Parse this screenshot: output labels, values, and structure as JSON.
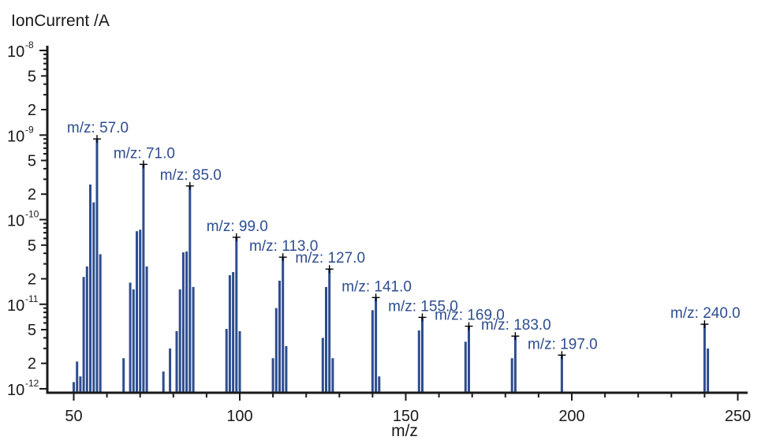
{
  "chart_data": {
    "type": "bar",
    "title": "",
    "ylabel": "IonCurrent /A",
    "xlabel": "m/z",
    "y_scale": "log",
    "ylim": [
      1e-12,
      1.2e-08
    ],
    "xlim": [
      42,
      252
    ],
    "x_ticks": [
      50,
      100,
      150,
      200,
      250
    ],
    "y_major_ticks": [
      {
        "value": 1e-12,
        "base": "10",
        "exp": "-12"
      },
      {
        "value": 1e-11,
        "base": "10",
        "exp": "-11"
      },
      {
        "value": 1e-10,
        "base": "10",
        "exp": "-10"
      },
      {
        "value": 1e-09,
        "base": "10",
        "exp": "-9"
      },
      {
        "value": 1e-08,
        "base": "10",
        "exp": "-8"
      }
    ],
    "y_minor_labels": [
      {
        "value": 2e-12,
        "label": "2"
      },
      {
        "value": 5e-12,
        "label": "5"
      },
      {
        "value": 2e-11,
        "label": "2"
      },
      {
        "value": 5e-11,
        "label": "5"
      },
      {
        "value": 2e-10,
        "label": "2"
      },
      {
        "value": 5e-10,
        "label": "5"
      },
      {
        "value": 2e-09,
        "label": "2"
      },
      {
        "value": 5e-09,
        "label": "5"
      }
    ],
    "series": [
      {
        "x": [
          50,
          51,
          52,
          53,
          54,
          55,
          56,
          57,
          58,
          65,
          67,
          68,
          69,
          70,
          71,
          72,
          77,
          79,
          81,
          82,
          83,
          84,
          85,
          86,
          96,
          97,
          98,
          99,
          100,
          110,
          111,
          112,
          113,
          114,
          125,
          126,
          127,
          128,
          140,
          141,
          142,
          154,
          155,
          168,
          169,
          182,
          183,
          197,
          240,
          241
        ],
        "values": [
          1.2e-12,
          2.1e-12,
          1.4e-12,
          2.1e-11,
          2.8e-11,
          2.6e-10,
          1.6e-10,
          9e-10,
          3.9e-11,
          2.3e-12,
          1.8e-11,
          1.5e-11,
          7.3e-11,
          7.6e-11,
          4.5e-10,
          2.8e-11,
          1.6e-12,
          3e-12,
          4.8e-12,
          1.5e-11,
          4.1e-11,
          4.2e-11,
          2.5e-10,
          1.6e-11,
          5.1e-12,
          2.2e-11,
          2.4e-11,
          6.2e-11,
          4.8e-12,
          2.3e-12,
          9e-12,
          1.9e-11,
          3.6e-11,
          3.2e-12,
          4e-12,
          1.6e-11,
          2.6e-11,
          2.3e-12,
          8.5e-12,
          1.2e-11,
          1.4e-12,
          4.9e-12,
          7e-12,
          3.6e-12,
          5.5e-12,
          2.3e-12,
          4.2e-12,
          2.5e-12,
          5.8e-12,
          3e-12
        ]
      }
    ],
    "annotations": [
      {
        "x": 57,
        "y": 9e-10,
        "text": "m/z: 57.0"
      },
      {
        "x": 71,
        "y": 4.5e-10,
        "text": "m/z: 71.0"
      },
      {
        "x": 85,
        "y": 2.5e-10,
        "text": "m/z: 85.0"
      },
      {
        "x": 99,
        "y": 6.2e-11,
        "text": "m/z: 99.0"
      },
      {
        "x": 113,
        "y": 3.6e-11,
        "text": "m/z: 113.0"
      },
      {
        "x": 127,
        "y": 2.6e-11,
        "text": "m/z: 127.0"
      },
      {
        "x": 141,
        "y": 1.2e-11,
        "text": "m/z: 141.0"
      },
      {
        "x": 155,
        "y": 7e-12,
        "text": "m/z: 155.0"
      },
      {
        "x": 169,
        "y": 5.5e-12,
        "text": "m/z: 169.0"
      },
      {
        "x": 183,
        "y": 4.2e-12,
        "text": "m/z: 183.0"
      },
      {
        "x": 197,
        "y": 2.5e-12,
        "text": "m/z: 197.0"
      },
      {
        "x": 240,
        "y": 5.8e-12,
        "text": "m/z: 240.0"
      }
    ],
    "grid": false,
    "colors": {
      "bar": "#2e4d8f",
      "annotation_text": "#2e4d8f",
      "axis": "#1a1a1a",
      "marker": "#000000"
    }
  }
}
